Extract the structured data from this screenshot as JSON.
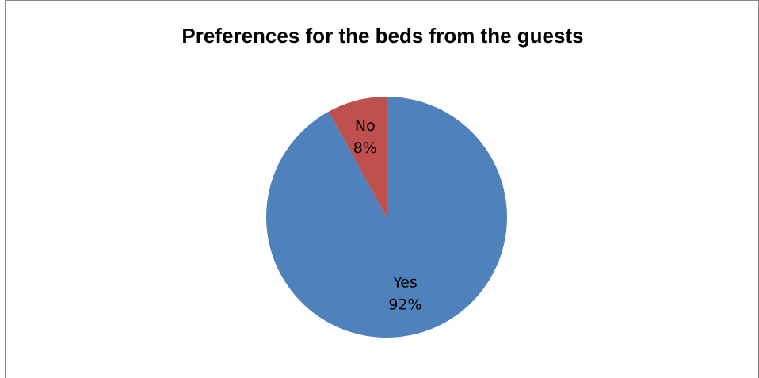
{
  "chart_data": {
    "type": "pie",
    "title": "Preferences for the beds from the guests",
    "slices": [
      {
        "name": "Yes",
        "value": 92,
        "percent_label": "92%",
        "color": "#4F81BD"
      },
      {
        "name": "No",
        "value": 8,
        "percent_label": "8%",
        "color": "#C0504D"
      }
    ],
    "legend": "none"
  }
}
